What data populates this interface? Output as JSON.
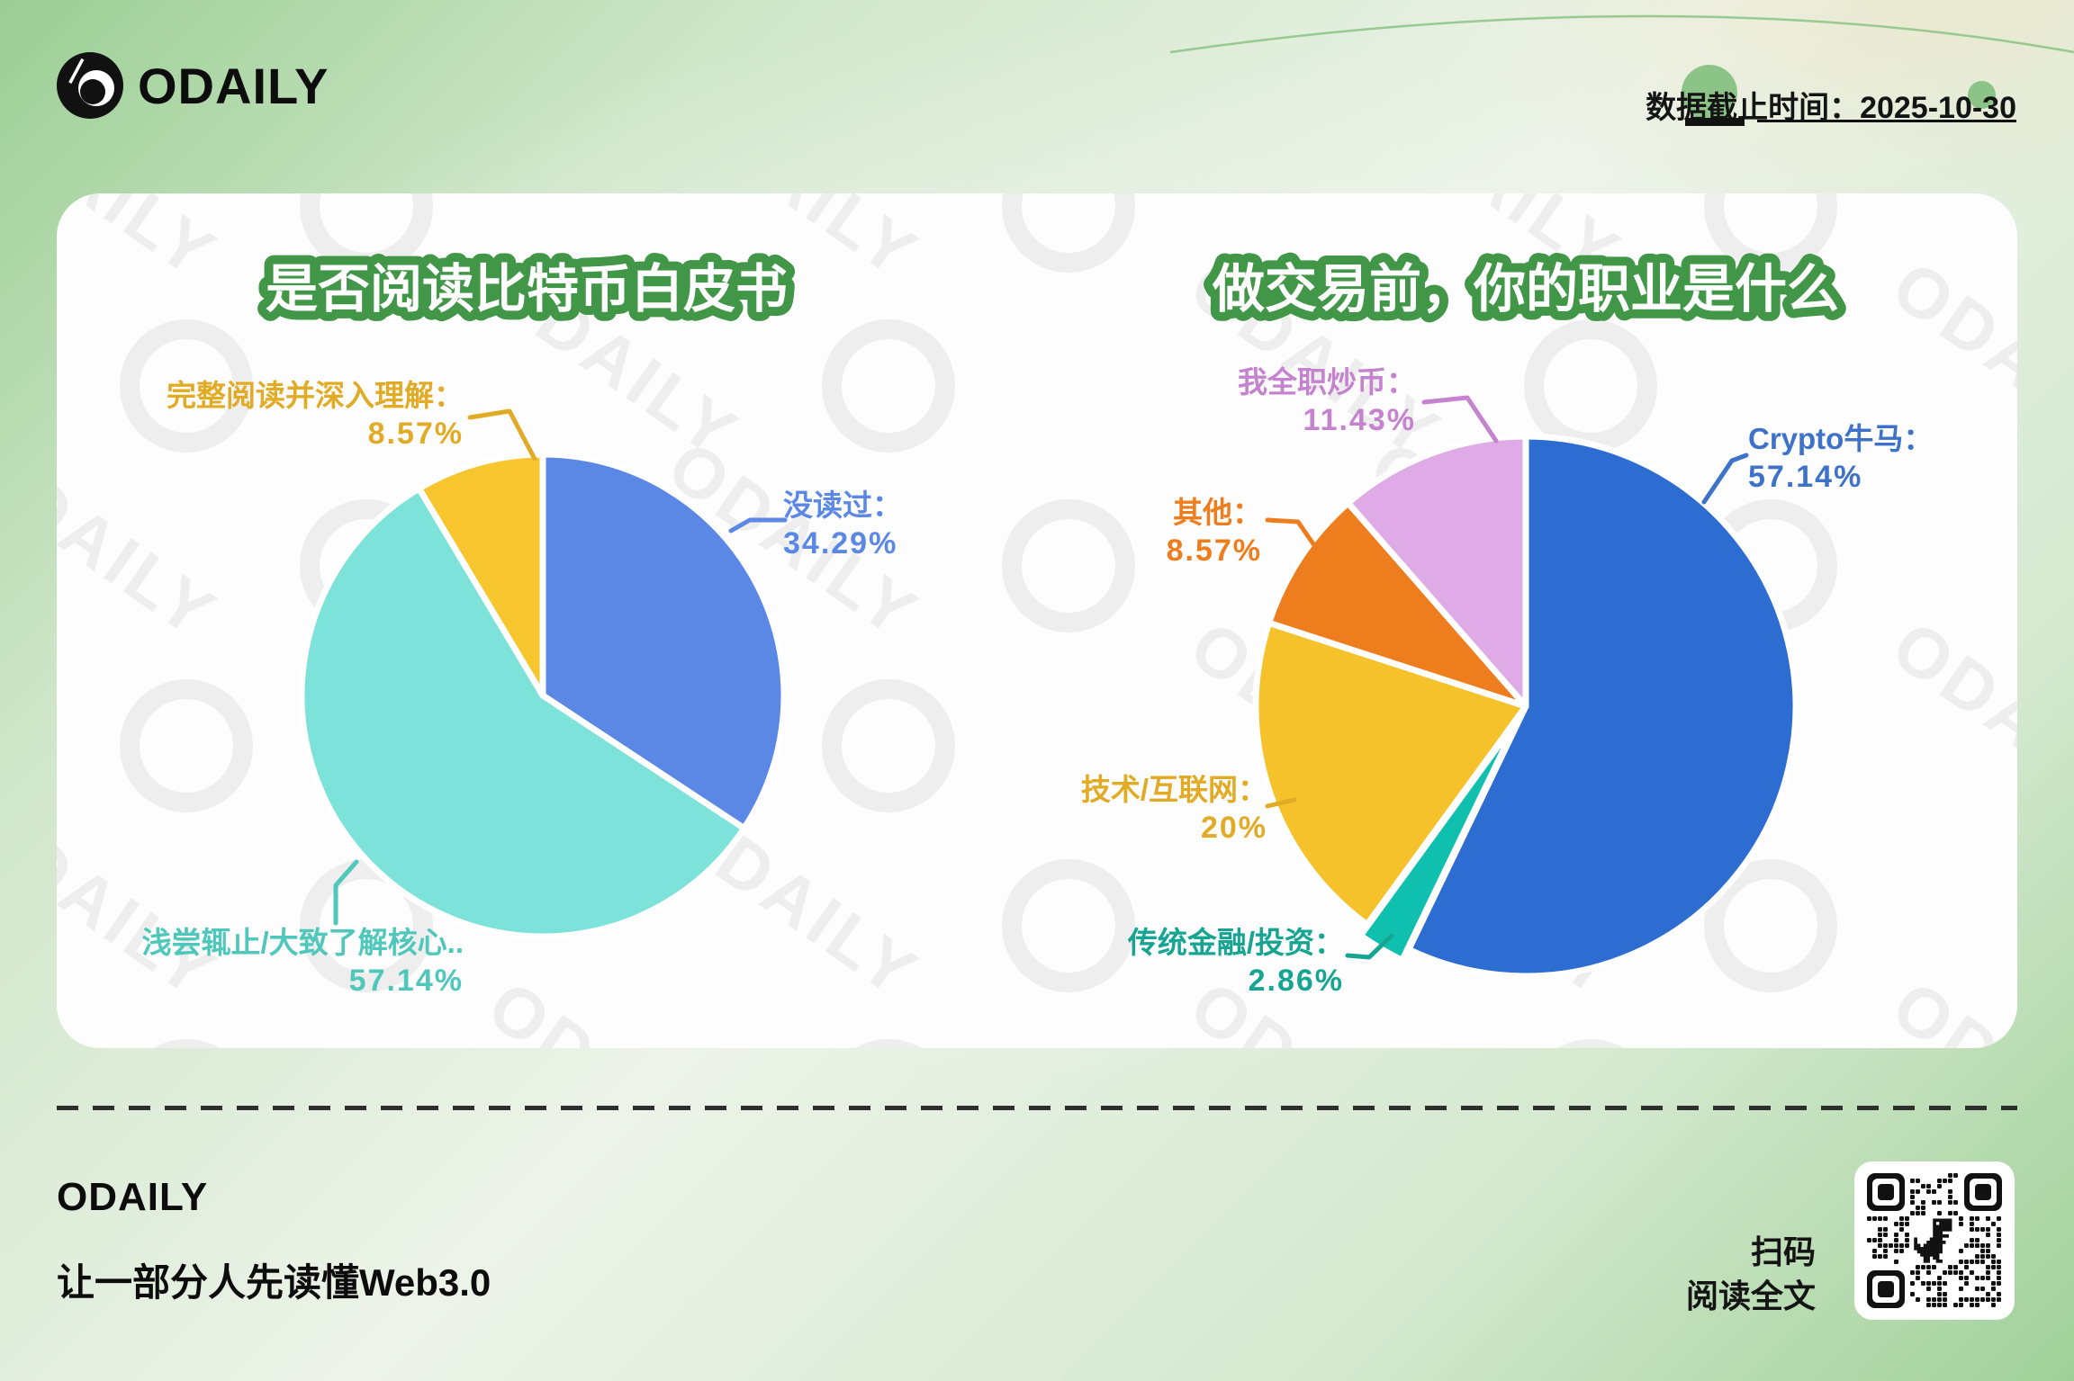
{
  "header": {
    "brand": "ODAILY",
    "date_prefix": "数据截止时间：",
    "date_value": "2025-10-30"
  },
  "watermark_text": "ODAILY",
  "chart_data": [
    {
      "type": "pie",
      "title": "是否阅读比特币白皮书",
      "legend_position": "none",
      "direction": "clockwise",
      "start_angle_deg": 0,
      "series": [
        {
          "name": "没读过",
          "label_text": "没读过：",
          "value": 34.29,
          "pct": "34.29%",
          "color": "#5b87e5",
          "label_color": "#5b87e5"
        },
        {
          "name": "浅尝辄止/大致了解核心..",
          "label_text": "浅尝辄止/大致了解核心..",
          "value": 57.14,
          "pct": "57.14%",
          "color": "#7de2da",
          "label_color": "#4fc7ba"
        },
        {
          "name": "完整阅读并深入理解",
          "label_text": "完整阅读并深入理解：",
          "value": 8.57,
          "pct": "8.57%",
          "color": "#f7c52e",
          "label_color": "#e2ab26"
        }
      ]
    },
    {
      "type": "pie",
      "title": "做交易前，你的职业是什么",
      "legend_position": "none",
      "direction": "clockwise",
      "start_angle_deg": 0,
      "series": [
        {
          "name": "Crypto牛马",
          "label_text": "Crypto牛马：",
          "value": 57.14,
          "pct": "57.14%",
          "color": "#2d6dd2",
          "label_color": "#3e72c9"
        },
        {
          "name": "传统金融/投资",
          "label_text": "传统金融/投资：",
          "value": 2.86,
          "pct": "2.86%",
          "color": "#10c0ae",
          "label_color": "#17a593",
          "exploded": true
        },
        {
          "name": "技术/互联网",
          "label_text": "技术/互联网：",
          "value": 20,
          "pct": "20%",
          "color": "#f6c22c",
          "label_color": "#e2ab26"
        },
        {
          "name": "其他",
          "label_text": "其他：",
          "value": 8.57,
          "pct": "8.57%",
          "color": "#ee7d1d",
          "label_color": "#ee7d1d"
        },
        {
          "name": "我全职炒币",
          "label_text": "我全职炒币：",
          "value": 11.43,
          "pct": "11.43%",
          "color": "#dfabe6",
          "label_color": "#c583cf"
        }
      ]
    }
  ],
  "footer": {
    "brand": "ODAILY",
    "slogan": "让一部分人先读懂Web3.0",
    "qr_caption": [
      "扫码",
      "阅读全文"
    ],
    "qr_icon": "qr-code-with-dino"
  }
}
